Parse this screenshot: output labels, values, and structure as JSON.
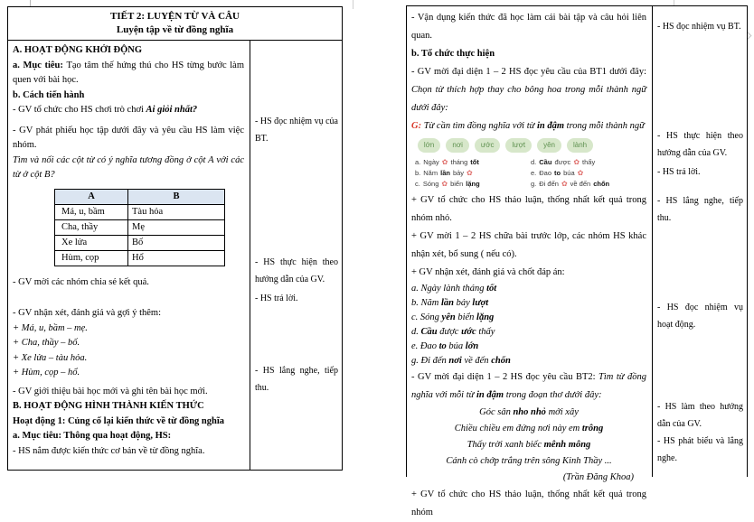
{
  "colors": {
    "accent_red": "#d93a2c",
    "pill_bg": "#d7e7ca",
    "pill_text": "#5f9150",
    "flower": "#e0716e",
    "match_header_bg": "#dbe5f1"
  },
  "page1": {
    "title_line1": "TIẾT 2: LUYỆN TỪ VÀ CÂU",
    "title_line2": "Luyện tập về từ đồng nghĩa",
    "section_a": "A. HOẠT ĐỘNG KHỞI ĐỘNG",
    "muc_tieu_label": "a. Mục tiêu: ",
    "muc_tieu_text": "Tạo tâm thế hứng thú cho HS từng bước làm quen với bài học.",
    "cach_tien_hanh": "b. Cách tiến hành",
    "tro_choi_pre": "- GV tổ chức cho HS chơi trò chơi ",
    "tro_choi_name": "Ai giỏi nhất?",
    "phat_phieu": "- GV phát phiếu học tập dưới đây và yêu cầu HS làm việc nhóm.",
    "tim_va_noi": "Tìm và nối các cột từ có ý nghĩa tương đồng ở cột A với các từ ở cột B?",
    "match_table": {
      "headers": [
        "A",
        "B"
      ],
      "rows": [
        [
          "Má, u, bầm",
          "Tàu hỏa"
        ],
        [
          "Cha, thầy",
          "Mẹ"
        ],
        [
          "Xe lửa",
          "Bố"
        ],
        [
          "Hùm, cọp",
          "Hổ"
        ]
      ]
    },
    "chia_se": "- GV mời các nhóm chia sẻ kết quả.",
    "nhan_xet": "- GV nhận xét, đánh giá và gợi ý thêm:",
    "goi_y": [
      "+ Má, u, bầm – mẹ.",
      "+ Cha, thầy – bố.",
      "+ Xe lửa – tàu hỏa.",
      "+ Hùm, cọp – hổ."
    ],
    "gioi_thieu": "- GV giới thiệu bài học mới và ghi tên bài học mới.",
    "section_b": "B. HOẠT ĐỘNG HÌNH THÀNH KIẾN THỨC",
    "hoat_dong_1": "Hoạt động 1: Củng cố lại kiến thức về từ đồng nghĩa",
    "hd1_muc_tieu": "a. Mục tiêu: Thông qua hoạt động, HS:",
    "hs_nam": "- HS nắm được kiến thức cơ bản về từ đồng nghĩa.",
    "notes": [
      "- HS đọc nhiệm vụ của BT.",
      "- HS thực hiện theo hướng dẫn của GV.",
      "- HS trả lời.",
      "- HS lắng nghe, tiếp thu."
    ]
  },
  "page2": {
    "van_dung": "- Vận dụng kiến thức đã học làm cái bài tập và câu hỏi liên quan.",
    "to_chuc": "b. Tổ chức thực hiện",
    "bt1_intro": "- GV mời đại diện 1 – 2 HS đọc yêu cầu của BT1 dưới đây: ",
    "bt1_task": "Chọn từ thích hợp thay cho bông hoa trong mỗi thành ngữ dưới đây:",
    "goi_y_label": "G:",
    "goi_y_pre": " Từ cần tìm đồng nghĩa với từ ",
    "goi_y_bold": "in đậm",
    "goi_y_post": " trong mỗi thành ngữ",
    "pills": [
      "lớn",
      "nơi",
      "ước",
      "lượt",
      "yên",
      "lành"
    ],
    "items": [
      {
        "k": "a.",
        "t1": "Ngày",
        "t2": "tháng",
        "b": "tốt"
      },
      {
        "k": "b.",
        "t1": "Năm",
        "b": "lần",
        "t2": "bảy"
      },
      {
        "k": "c.",
        "t1": "Sóng",
        "t2": "biển",
        "b": "lặng"
      },
      {
        "k": "d.",
        "b": "Cầu",
        "t1": "được",
        "t2": "thấy"
      },
      {
        "k": "e.",
        "t1": "Đao",
        "b": "to",
        "t2": "búa"
      },
      {
        "k": "g.",
        "t1": "Đi đến",
        "t2": "về đến",
        "b": "chốn"
      }
    ],
    "thao_luan": "+ GV tổ chức cho HS thảo luận, thống nhất kết quả trong nhóm nhỏ.",
    "chua_bai": "+ GV mời 1 – 2 HS chữa bài trước lớp, các nhóm HS khác nhận xét, bổ sung ( nếu có).",
    "chot_dap_an": "+ GV nhận xét, đánh giá và chốt đáp án:",
    "answers": [
      {
        "s1": "a. Ngày lành tháng ",
        "b1": "tốt"
      },
      {
        "s1": "b. Năm ",
        "b1": "lần",
        "s2": " bảy ",
        "b2": "lượt"
      },
      {
        "s1": "c. Sóng ",
        "b1": "yên",
        "s2": " biển ",
        "b2": "lặng"
      },
      {
        "s1": "d. ",
        "b1": "Cầu",
        "s2": " được ",
        "b2": "ước",
        "s3": " thấy"
      },
      {
        "s1": "e. Đao ",
        "b1": "to",
        "s2": " búa ",
        "b2": "lớn"
      },
      {
        "s1": "g. Đi đến ",
        "b1": "nơi",
        "s2": " về đến ",
        "b2": "chốn"
      }
    ],
    "bt2_intro": "- GV mời đại diện 1 – 2 HS đọc yêu cầu BT2: ",
    "bt2_task_pre": "Tìm từ đồng nghĩa với mỗi từ ",
    "bt2_task_bold": "in đậm",
    "bt2_task_post": " trong đoạn thơ dưới đây:",
    "poem": [
      {
        "s1": "Góc sân ",
        "b1": "nho nhỏ",
        "s2": " mới xây"
      },
      {
        "s1": "Chiều chiều em đứng nơi này em ",
        "b1": "trông"
      },
      {
        "s1": "Thấy trời xanh biếc ",
        "b1": "mênh mông"
      },
      {
        "s1": "Cánh cò chớp trắng trên sông Kinh Thầy ..."
      }
    ],
    "poem_author": "(Trần Đăng Khoa)",
    "thao_luan_2": "+ GV tổ chức cho HS thảo luận, thống nhất kết quả trong nhóm",
    "notes": [
      "- HS đọc nhiệm vụ BT.",
      "- HS thực hiện theo hướng dẫn của GV.",
      "- HS trả lời.",
      "- HS lắng nghe, tiếp thu.",
      "- HS đọc nhiệm vụ hoạt động.",
      "- HS làm theo hướng dẫn của GV.",
      "- HS phát biểu và lắng nghe."
    ]
  }
}
